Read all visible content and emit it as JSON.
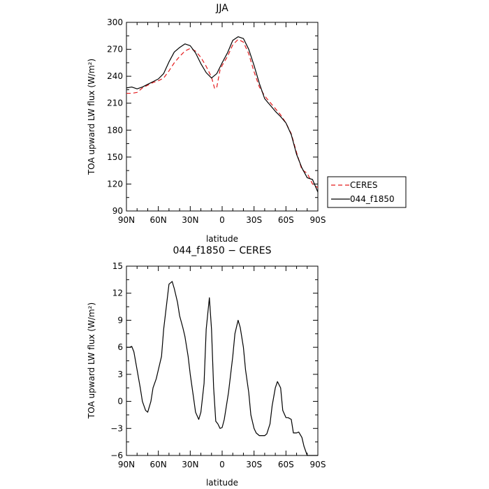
{
  "chart_data": [
    {
      "type": "line",
      "title": "JJA",
      "xlabel": "latitude",
      "ylabel": "TOA upward LW flux (W/m²)",
      "xlim": [
        90,
        -90
      ],
      "ylim": [
        90,
        300
      ],
      "xtick_values": [
        90,
        60,
        30,
        0,
        -30,
        -60,
        -90
      ],
      "xtick_labels": [
        "90N",
        "60N",
        "30N",
        "0",
        "30S",
        "60S",
        "90S"
      ],
      "ytick_values": [
        90,
        120,
        150,
        180,
        210,
        240,
        270,
        300
      ],
      "ytick_labels": [
        "90",
        "120",
        "150",
        "180",
        "210",
        "240",
        "270",
        "300"
      ],
      "legend": {
        "placement": "right",
        "entries": [
          "CERES",
          "044_f1850"
        ]
      },
      "series": [
        {
          "name": "CERES",
          "color": "#e41a1c",
          "dash": "dashed",
          "x": [
            90,
            85,
            80,
            75,
            70,
            65,
            60,
            55,
            50,
            45,
            40,
            35,
            30,
            25,
            20,
            15,
            10,
            7,
            5,
            2,
            0,
            -5,
            -10,
            -15,
            -20,
            -25,
            -30,
            -35,
            -40,
            -45,
            -50,
            -55,
            -60,
            -65,
            -70,
            -75,
            -80,
            -85,
            -90
          ],
          "y": [
            221,
            221,
            222,
            227,
            230,
            233,
            235,
            238,
            246,
            255,
            262,
            268,
            271,
            268,
            261,
            251,
            239,
            226,
            228,
            247,
            252,
            262,
            275,
            281,
            278,
            265,
            245,
            228,
            218,
            211,
            204,
            197,
            188,
            176,
            155,
            136,
            132,
            120,
            116
          ]
        },
        {
          "name": "044_f1850",
          "color": "#000000",
          "dash": "solid",
          "x": [
            90,
            85,
            80,
            75,
            70,
            65,
            60,
            55,
            50,
            45,
            40,
            35,
            30,
            25,
            20,
            15,
            10,
            5,
            0,
            -5,
            -10,
            -15,
            -20,
            -25,
            -30,
            -35,
            -40,
            -45,
            -50,
            -55,
            -60,
            -65,
            -70,
            -75,
            -80,
            -85,
            -90
          ],
          "y": [
            227,
            228,
            226,
            228,
            231,
            234,
            237,
            243,
            256,
            267,
            272,
            276,
            274,
            266,
            254,
            244,
            238,
            243,
            255,
            266,
            280,
            284,
            282,
            270,
            252,
            232,
            215,
            208,
            201,
            195,
            188,
            175,
            153,
            138,
            127,
            125,
            111
          ]
        }
      ]
    },
    {
      "type": "line",
      "title": "044_f1850 − CERES",
      "xlabel": "latitude",
      "ylabel": "TOA upward LW flux (W/m²)",
      "xlim": [
        90,
        -90
      ],
      "ylim": [
        -6,
        15
      ],
      "xtick_values": [
        90,
        60,
        30,
        0,
        -30,
        -60,
        -90
      ],
      "xtick_labels": [
        "90N",
        "60N",
        "30N",
        "0",
        "30S",
        "60S",
        "90S"
      ],
      "ytick_values": [
        -6,
        -3,
        0,
        3,
        6,
        9,
        12,
        15
      ],
      "ytick_labels": [
        "−6",
        "−3",
        "0",
        "3",
        "6",
        "9",
        "12",
        "15"
      ],
      "series": [
        {
          "name": "044_f1850",
          "color": "#000000",
          "dash": "solid",
          "x": [
            90,
            87,
            85,
            83,
            80,
            77,
            75,
            72,
            70,
            67,
            65,
            62,
            60,
            57,
            55,
            52,
            50,
            47,
            45,
            42,
            40,
            37,
            35,
            32,
            30,
            27,
            25,
            22,
            20,
            17,
            15,
            12,
            10,
            8,
            6,
            4,
            2,
            0,
            -2,
            -4,
            -6,
            -8,
            -10,
            -12,
            -15,
            -17,
            -20,
            -22,
            -25,
            -27,
            -30,
            -32,
            -35,
            -37,
            -40,
            -42,
            -45,
            -47,
            -50,
            -52,
            -55,
            -57,
            -60,
            -62,
            -65,
            -67,
            -70,
            -72,
            -75,
            -77,
            -80,
            -82,
            -85,
            -87,
            -90
          ],
          "y": [
            6,
            6,
            6.1,
            5.5,
            3.5,
            1.5,
            0,
            -1,
            -1.2,
            0,
            1.5,
            2.5,
            3.5,
            5,
            8,
            11,
            13,
            13.3,
            12.5,
            11,
            9.5,
            8.2,
            7.2,
            5,
            3,
            0.5,
            -1.2,
            -2,
            -1.2,
            2,
            8,
            11.5,
            8,
            1.5,
            -2.2,
            -2.5,
            -3,
            -2.9,
            -2,
            -0.5,
            1,
            3,
            5,
            7.5,
            9,
            8.2,
            6,
            3.5,
            1,
            -1.5,
            -3,
            -3.5,
            -3.8,
            -3.8,
            -3.8,
            -3.6,
            -2.5,
            -0.5,
            1.5,
            2.2,
            1.5,
            -1,
            -1.8,
            -1.8,
            -2,
            -3.5,
            -3.5,
            -3.4,
            -4,
            -5,
            -6,
            -6,
            -6,
            -6,
            -6
          ]
        }
      ]
    }
  ]
}
